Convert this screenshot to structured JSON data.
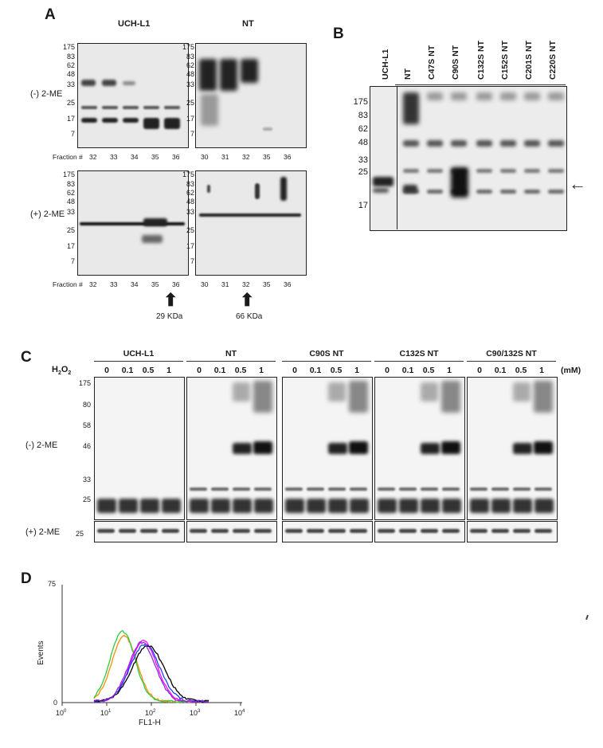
{
  "panelA": {
    "label": "A",
    "top_left_title": "UCH-L1",
    "top_right_title": "NT",
    "row_labels": [
      "(-) 2-ME",
      "(+) 2-ME"
    ],
    "mw_top_left": [
      "175",
      "83",
      "62",
      "48",
      "33",
      "25",
      "17",
      "7"
    ],
    "mw_top_right": [
      "175",
      "83",
      "62",
      "48",
      "33",
      "25",
      "17",
      "7"
    ],
    "mw_bottom_left": [
      "175",
      "83",
      "62",
      "48",
      "33",
      "25",
      "17",
      "7"
    ],
    "mw_bottom_right": [
      "175",
      "83",
      "62",
      "48",
      "33",
      "25",
      "17",
      "7"
    ],
    "fraction_label": "Fraction #",
    "fractions_left": [
      "32",
      "33",
      "34",
      "35",
      "36"
    ],
    "fractions_right": [
      "30",
      "31",
      "32",
      "35",
      "36"
    ],
    "arrow_left_text": "29  KDa",
    "arrow_right_text": "66 KDa"
  },
  "panelB": {
    "label": "B",
    "lanes": [
      "UCH-L1",
      "NT",
      "C47S NT",
      "C90S NT",
      "C132S NT",
      "C152S NT",
      "C201S NT",
      "C220S NT"
    ],
    "mw": [
      "175",
      "83",
      "62",
      "48",
      "33",
      "25",
      "17"
    ]
  },
  "panelC": {
    "label": "C",
    "groups": [
      "UCH-L1",
      "NT",
      "C90S NT",
      "C132S NT",
      "C90/132S NT"
    ],
    "h2o2_label": "H",
    "concentrations": [
      "0",
      "0.1",
      "0.5",
      "1"
    ],
    "unit": "(mM)",
    "mw": [
      "175",
      "80",
      "58",
      "46",
      "33",
      "25"
    ],
    "row_labels": [
      "(-) 2-ME",
      "(+) 2-ME"
    ],
    "mw_bottom": "25"
  },
  "panelD": {
    "label": "D",
    "y_label": "Events",
    "x_label": "FL1-H",
    "y_max": "75",
    "y_min": "0",
    "x_ticks": [
      "10",
      "10",
      "10",
      "10",
      "10"
    ],
    "x_exponents": [
      "0",
      "1",
      "2",
      "3",
      "4"
    ],
    "series_colors": [
      "#ff8c00",
      "#2ecc40",
      "#ff00ff",
      "#1e40ff",
      "#000000",
      "#8b2be2"
    ]
  }
}
